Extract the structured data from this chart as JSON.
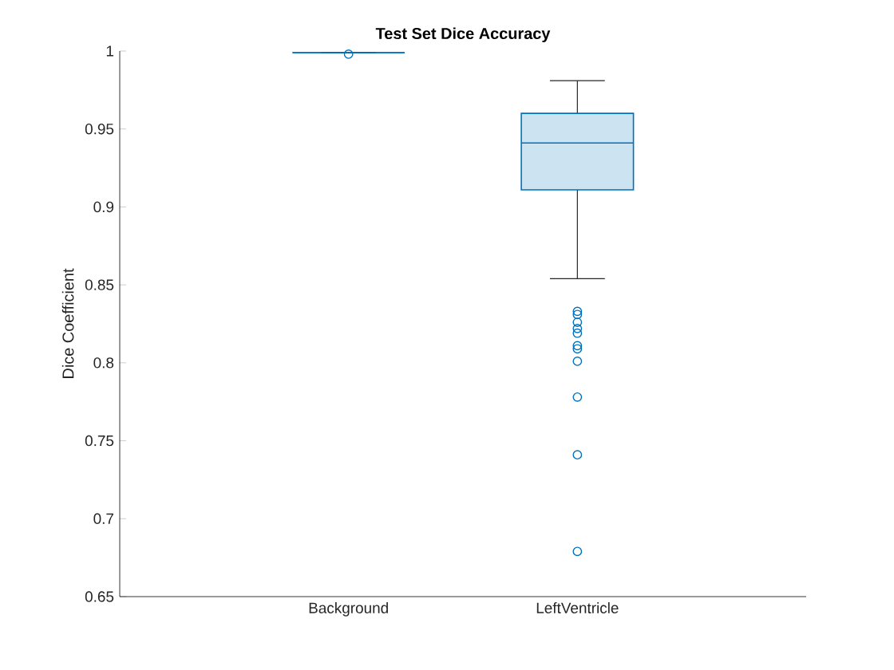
{
  "chart_data": {
    "type": "box",
    "title": "Test Set Dice Accuracy",
    "ylabel": "Dice Coefficient",
    "categories": [
      "Background",
      "LeftVentricle"
    ],
    "boxes": [
      {
        "low": 0.999,
        "q1": 0.999,
        "median": 0.999,
        "q3": 0.999,
        "high": 0.999,
        "outliers": [
          0.998
        ]
      },
      {
        "low": 0.854,
        "q1": 0.911,
        "median": 0.941,
        "q3": 0.96,
        "high": 0.981,
        "outliers": [
          0.833,
          0.831,
          0.826,
          0.822,
          0.819,
          0.811,
          0.809,
          0.801,
          0.778,
          0.741,
          0.679
        ]
      }
    ],
    "color": "#0072bd",
    "marker": "circle",
    "ylim": [
      0.65,
      1
    ],
    "yticks": [
      0.65,
      0.7,
      0.75,
      0.8,
      0.85,
      0.9,
      0.95,
      1
    ]
  }
}
